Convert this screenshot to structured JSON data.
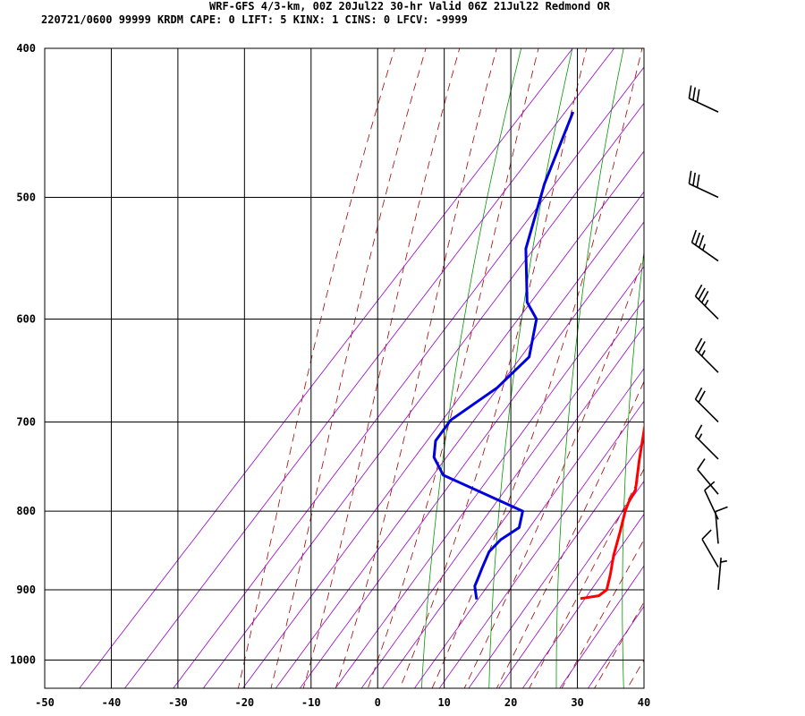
{
  "header": {
    "line1": "WRF-GFS 4/3-km, 00Z 20Jul22 30-hr Valid 06Z 21Jul22 Redmond OR",
    "line2": "220721/0600 99999  KRDM    CAPE:      0 LIFT:     5 KINX:     1 CINS:      0 LFCV: -9999"
  },
  "chart_data": {
    "type": "line",
    "title": "WRF-GFS 4/3-km, 00Z 20Jul22 30-hr Valid 06Z 21Jul22 Redmond OR",
    "subtitle": "220721/0600 99999  KRDM    CAPE:      0 LIFT:     5 KINX:     1 CINS:      0 LFCV: -9999",
    "xlabel": "",
    "ylabel": "",
    "x_ticks": [
      -50,
      -40,
      -30,
      -20,
      -10,
      0,
      10,
      20,
      30,
      40
    ],
    "p_ticks": [
      400,
      500,
      600,
      700,
      800,
      900,
      1000
    ],
    "xlim": [
      -50,
      40
    ],
    "plim": [
      400,
      1050
    ],
    "y_scale": "log-pressure",
    "grid": true,
    "colors": {
      "temperature": "#ff0000",
      "dewpoint": "#0000dd",
      "dry_adiabats": "#009900",
      "moist_adiabats": "#aa0000",
      "mixing_ratio": "#9900cc",
      "grid": "#000000"
    },
    "series": [
      {
        "points": [
          [
            -14.5,
            440
          ],
          [
            -9.1,
            490
          ],
          [
            -5.8,
            540
          ],
          [
            -1.9,
            585
          ],
          [
            1.2,
            615
          ],
          [
            5.2,
            655
          ],
          [
            9.4,
            700
          ],
          [
            13.5,
            742
          ],
          [
            16.7,
            775
          ],
          [
            17.3,
            790
          ],
          [
            17.9,
            800
          ],
          [
            19.8,
            825
          ],
          [
            21.9,
            855
          ],
          [
            23.9,
            880
          ],
          [
            25.3,
            900
          ],
          [
            24.9,
            908
          ],
          [
            22.5,
            912
          ]
        ]
      },
      {
        "points": [
          [
            -41.6,
            440
          ],
          [
            -36.6,
            490
          ],
          [
            -31,
            540
          ],
          [
            -23.9,
            585
          ],
          [
            -20.3,
            600
          ],
          [
            -16.5,
            635
          ],
          [
            -17.3,
            665
          ],
          [
            -20.1,
            698
          ],
          [
            -19.7,
            720
          ],
          [
            -17.8,
            738
          ],
          [
            -14.1,
            758
          ],
          [
            2.5,
            800
          ],
          [
            4.1,
            820
          ],
          [
            2.9,
            835
          ],
          [
            2.7,
            850
          ],
          [
            3.7,
            870
          ],
          [
            4.5,
            885
          ],
          [
            5.0,
            895
          ],
          [
            7.0,
            913
          ]
        ]
      }
    ],
    "wind_barbs": [
      {
        "pressure": 440,
        "direction_deg": 295,
        "speed_kt": 30
      },
      {
        "pressure": 500,
        "direction_deg": 295,
        "speed_kt": 30
      },
      {
        "pressure": 550,
        "direction_deg": 305,
        "speed_kt": 35
      },
      {
        "pressure": 600,
        "direction_deg": 315,
        "speed_kt": 35
      },
      {
        "pressure": 650,
        "direction_deg": 315,
        "speed_kt": 25
      },
      {
        "pressure": 700,
        "direction_deg": 315,
        "speed_kt": 20
      },
      {
        "pressure": 740,
        "direction_deg": 315,
        "speed_kt": 15
      },
      {
        "pressure": 780,
        "direction_deg": 320,
        "speed_kt": 10
      },
      {
        "pressure": 810,
        "direction_deg": 335,
        "speed_kt": 10
      },
      {
        "pressure": 840,
        "direction_deg": 355,
        "speed_kt": 10
      },
      {
        "pressure": 870,
        "direction_deg": 330,
        "speed_kt": 10
      },
      {
        "pressure": 900,
        "direction_deg": 5,
        "speed_kt": 5
      }
    ]
  }
}
